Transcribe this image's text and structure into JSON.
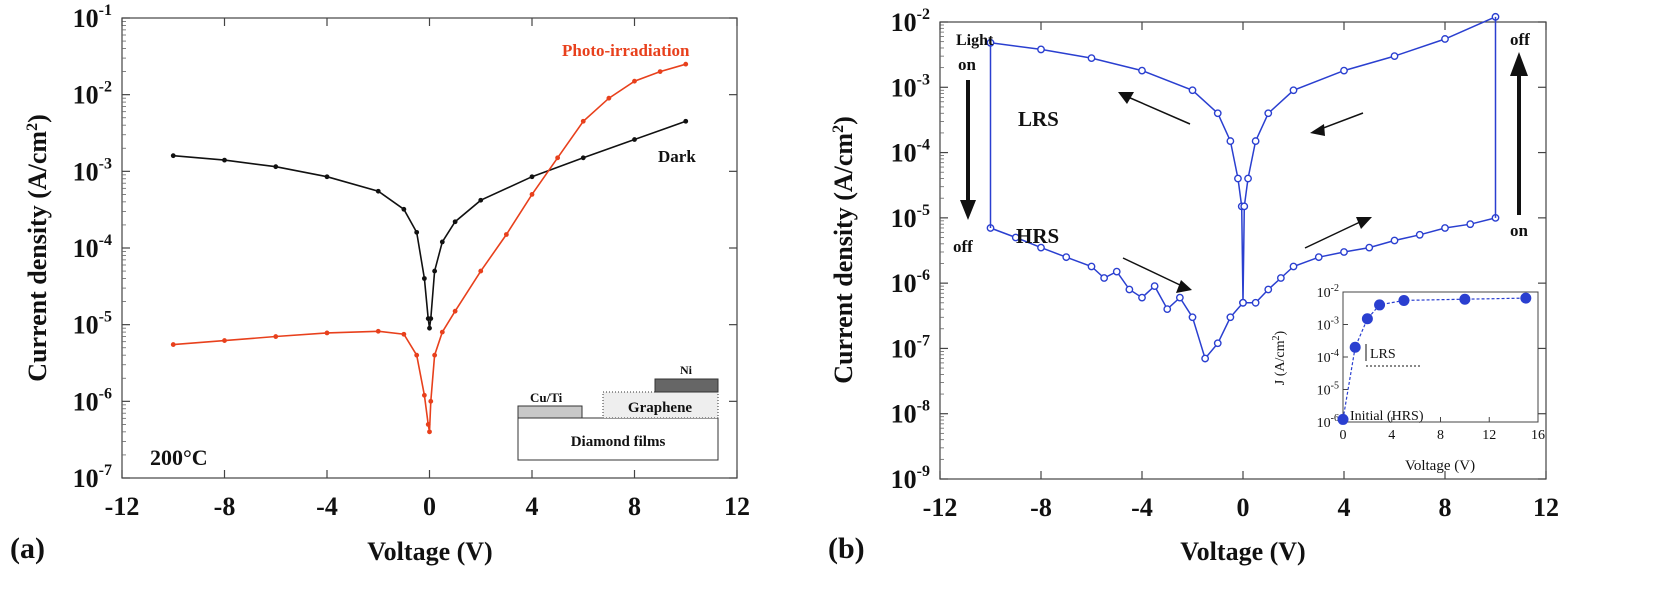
{
  "chart_data": [
    {
      "panel_label": "(a)",
      "type": "scatter",
      "xlabel": "Voltage (V)",
      "ylabel": "Current density (A/cm",
      "ylabel_sup": "2",
      "ylabel_end": ")",
      "xlim": [
        -12,
        12
      ],
      "ylim_log10": [
        -7,
        -1
      ],
      "yscale": "log",
      "x_ticks": [
        "-12",
        "-8",
        "-4",
        "0",
        "4",
        "8",
        "12"
      ],
      "y_ticks": [
        {
          "base": "10",
          "exp": "-1"
        },
        {
          "base": "10",
          "exp": "-2"
        },
        {
          "base": "10",
          "exp": "-3"
        },
        {
          "base": "10",
          "exp": "-4"
        },
        {
          "base": "10",
          "exp": "-5"
        },
        {
          "base": "10",
          "exp": "-6"
        },
        {
          "base": "10",
          "exp": "-7"
        }
      ],
      "temperature_label": "200°C",
      "series": [
        {
          "name": "Dark",
          "color": "#111111",
          "x": [
            -10,
            -8,
            -6,
            -4,
            -2,
            -1,
            -0.5,
            -0.2,
            -0.05,
            0,
            0.05,
            0.2,
            0.5,
            1,
            2,
            4,
            6,
            8,
            10
          ],
          "y": [
            0.0016,
            0.0014,
            0.00115,
            0.00085,
            0.00055,
            0.00032,
            0.00016,
            4e-05,
            1.2e-05,
            9e-06,
            1.2e-05,
            5e-05,
            0.00012,
            0.00022,
            0.00042,
            0.00085,
            0.0015,
            0.0026,
            0.0045
          ]
        },
        {
          "name": "Photo-irradiation",
          "color": "#e8401c",
          "x": [
            -10,
            -8,
            -6,
            -4,
            -2,
            -1,
            -0.5,
            -0.2,
            -0.05,
            0,
            0.05,
            0.2,
            0.5,
            1,
            2,
            3,
            4,
            5,
            6,
            7,
            8,
            9,
            10
          ],
          "y": [
            5.5e-06,
            6.2e-06,
            7e-06,
            7.8e-06,
            8.2e-06,
            7.5e-06,
            4e-06,
            1.2e-06,
            5e-07,
            4e-07,
            1e-06,
            4e-06,
            8e-06,
            1.5e-05,
            5e-05,
            0.00015,
            0.0005,
            0.0015,
            0.0045,
            0.009,
            0.015,
            0.02,
            0.025
          ]
        }
      ],
      "inset": {
        "layers": [
          "Cu/Ti",
          "Graphene",
          "Ni",
          "Diamond films"
        ]
      }
    },
    {
      "panel_label": "(b)",
      "type": "line",
      "xlabel": "Voltage (V)",
      "ylabel": "Current density (A/cm",
      "ylabel_sup": "2",
      "ylabel_end": ")",
      "xlim": [
        -12,
        12
      ],
      "ylim_log10": [
        -9,
        -2
      ],
      "yscale": "log",
      "x_ticks": [
        "-12",
        "-8",
        "-4",
        "0",
        "4",
        "8",
        "12"
      ],
      "y_ticks": [
        {
          "base": "10",
          "exp": "-2"
        },
        {
          "base": "10",
          "exp": "-3"
        },
        {
          "base": "10",
          "exp": "-4"
        },
        {
          "base": "10",
          "exp": "-5"
        },
        {
          "base": "10",
          "exp": "-6"
        },
        {
          "base": "10",
          "exp": "-7"
        },
        {
          "base": "10",
          "exp": "-8"
        },
        {
          "base": "10",
          "exp": "-9"
        }
      ],
      "color": "#2a3fd0",
      "series": [
        {
          "name": "LRS",
          "x": [
            -10,
            -8,
            -6,
            -4,
            -2,
            -1,
            -0.5,
            -0.2,
            -0.05,
            0,
            0.05,
            0.2,
            0.5,
            1,
            2,
            4,
            6,
            8,
            10
          ],
          "y": [
            0.0048,
            0.0038,
            0.0028,
            0.0018,
            0.0009,
            0.0004,
            0.00015,
            4e-05,
            1.5e-05,
            5e-07,
            1.5e-05,
            4e-05,
            0.00015,
            0.0004,
            0.0009,
            0.0018,
            0.003,
            0.0055,
            0.012
          ]
        },
        {
          "name": "HRS",
          "x": [
            -10,
            -9,
            -8,
            -7,
            -6,
            -5.5,
            -5,
            -4.5,
            -4,
            -3.5,
            -3,
            -2.5,
            -2,
            -1.5,
            -1,
            -0.5,
            0,
            0.5,
            1,
            1.5,
            2,
            3,
            4,
            5,
            6,
            7,
            8,
            9,
            10
          ],
          "y": [
            7e-06,
            5e-06,
            3.5e-06,
            2.5e-06,
            1.8e-06,
            1.2e-06,
            1.5e-06,
            8e-07,
            6e-07,
            9e-07,
            4e-07,
            6e-07,
            3e-07,
            7e-08,
            1.2e-07,
            3e-07,
            5e-07,
            5e-07,
            8e-07,
            1.2e-06,
            1.8e-06,
            2.5e-06,
            3e-06,
            3.5e-06,
            4.5e-06,
            5.5e-06,
            7e-06,
            8e-06,
            1e-05
          ]
        }
      ],
      "annotations": {
        "light": "Light",
        "on_left": "on",
        "off_left": "off",
        "off_right": "off",
        "on_right": "on",
        "lrs": "LRS",
        "hrs": "HRS"
      },
      "inset": {
        "type": "scatter",
        "xlabel": "Voltage (V)",
        "ylabel": "J (A/cm",
        "ylabel_sup": "2",
        "ylabel_end": ")",
        "x_ticks": [
          "0",
          "4",
          "8",
          "12",
          "16"
        ],
        "y_ticks": [
          {
            "base": "10",
            "exp": "-2"
          },
          {
            "base": "10",
            "exp": "-3"
          },
          {
            "base": "10",
            "exp": "-4"
          },
          {
            "base": "10",
            "exp": "-5"
          },
          {
            "base": "10",
            "exp": "-6"
          }
        ],
        "xlim": [
          0,
          16
        ],
        "ylim_log10": [
          -6,
          -2
        ],
        "x": [
          0,
          1,
          2,
          3,
          5,
          10,
          15
        ],
        "y": [
          1.2e-06,
          0.0002,
          0.0015,
          0.004,
          0.0055,
          0.006,
          0.0065
        ],
        "labels": {
          "lrs": "LRS",
          "initial": "Initial (HRS)"
        }
      }
    }
  ]
}
